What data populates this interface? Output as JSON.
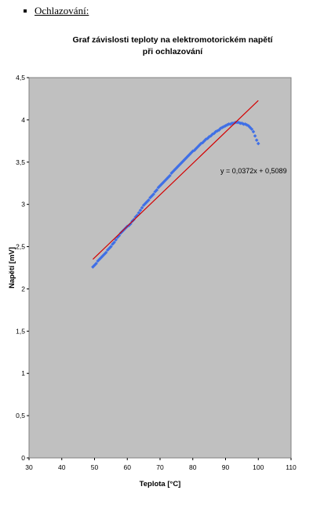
{
  "heading": {
    "text": "Ochlazování:"
  },
  "chart_data": {
    "type": "scatter",
    "title_line1": "Graf závislosti teploty na elektromotorickém napětí",
    "title_line2": "při ochlazování",
    "xlabel": "Teplota [°C]",
    "ylabel": "Napětí [mV]",
    "xlim": [
      30,
      110
    ],
    "ylim": [
      0,
      4.5
    ],
    "x_ticks": [
      "30",
      "40",
      "50",
      "60",
      "70",
      "80",
      "90",
      "100",
      "110"
    ],
    "y_ticks": [
      "0",
      "0,5",
      "1",
      "1,5",
      "2",
      "2,5",
      "3",
      "3,5",
      "4",
      "4,5"
    ],
    "grid": false,
    "plot_background": "#c0c0c0",
    "series": [
      {
        "color": "#3f6fe6",
        "marker": "diamond",
        "x": [
          49.5,
          50.0,
          50.5,
          51.0,
          51.5,
          52.0,
          52.5,
          53.0,
          53.5,
          54.0,
          54.5,
          55.0,
          55.5,
          56.0,
          56.5,
          57.0,
          57.5,
          58.0,
          58.5,
          59.0,
          59.5,
          60.0,
          60.5,
          61.0,
          61.5,
          62.0,
          62.5,
          63.0,
          63.5,
          64.0,
          64.5,
          65.0,
          65.5,
          66.0,
          66.5,
          67.0,
          67.5,
          68.0,
          68.5,
          69.0,
          69.5,
          70.0,
          70.5,
          71.0,
          71.5,
          72.0,
          72.5,
          73.0,
          73.5,
          74.0,
          74.5,
          75.0,
          75.5,
          76.0,
          76.5,
          77.0,
          77.5,
          78.0,
          78.5,
          79.0,
          79.5,
          80.0,
          80.5,
          81.0,
          81.5,
          82.0,
          82.5,
          83.0,
          83.5,
          84.0,
          84.5,
          85.0,
          85.5,
          86.0,
          86.5,
          87.0,
          87.5,
          88.0,
          88.5,
          89.0,
          89.5,
          90.0,
          90.5,
          91.0,
          91.5,
          92.0,
          92.5,
          93.0,
          93.5,
          94.0,
          94.5,
          95.0,
          95.5,
          96.0,
          96.5,
          97.0,
          97.5,
          98.0,
          98.5,
          99.0,
          99.5,
          100.0
        ],
        "y": [
          2.26,
          2.28,
          2.3,
          2.33,
          2.35,
          2.37,
          2.39,
          2.41,
          2.43,
          2.46,
          2.48,
          2.5,
          2.53,
          2.55,
          2.58,
          2.61,
          2.63,
          2.66,
          2.68,
          2.7,
          2.72,
          2.74,
          2.75,
          2.77,
          2.8,
          2.82,
          2.85,
          2.87,
          2.9,
          2.93,
          2.96,
          2.99,
          3.01,
          3.03,
          3.05,
          3.08,
          3.1,
          3.12,
          3.15,
          3.17,
          3.2,
          3.22,
          3.24,
          3.26,
          3.28,
          3.3,
          3.32,
          3.34,
          3.37,
          3.39,
          3.41,
          3.43,
          3.45,
          3.47,
          3.49,
          3.51,
          3.53,
          3.55,
          3.57,
          3.59,
          3.61,
          3.63,
          3.64,
          3.66,
          3.68,
          3.7,
          3.72,
          3.73,
          3.75,
          3.77,
          3.78,
          3.8,
          3.81,
          3.83,
          3.84,
          3.86,
          3.87,
          3.88,
          3.9,
          3.91,
          3.92,
          3.93,
          3.94,
          3.95,
          3.95,
          3.96,
          3.96,
          3.97,
          3.97,
          3.97,
          3.96,
          3.96,
          3.95,
          3.95,
          3.94,
          3.93,
          3.91,
          3.89,
          3.86,
          3.81,
          3.76,
          3.72
        ]
      }
    ],
    "trendline": {
      "color": "#d40000",
      "slope": 0.0372,
      "intercept": 0.5089,
      "x_range": [
        49.5,
        100
      ],
      "equation": "y = 0,0372x + 0,5089"
    }
  }
}
